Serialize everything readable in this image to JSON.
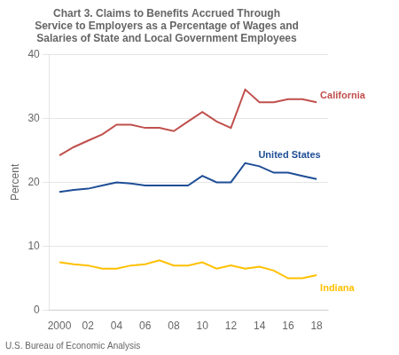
{
  "chart_data": {
    "type": "line",
    "title": [
      "Chart 3. Claims to Benefits Accrued Through",
      "Service to Employers as a Percentage of Wages and",
      "Salaries of State and Local Government Employees"
    ],
    "ylabel": "Percent",
    "source": "U.S. Bureau of Economic Analysis",
    "x": [
      2000,
      2001,
      2002,
      2003,
      2004,
      2005,
      2006,
      2007,
      2008,
      2009,
      2010,
      2011,
      2012,
      2013,
      2014,
      2015,
      2016,
      2017,
      2018
    ],
    "series": [
      {
        "name": "California",
        "color": "#c0504d",
        "values": [
          24.2,
          25.5,
          26.5,
          27.5,
          29.0,
          29.0,
          28.5,
          28.5,
          28.0,
          29.5,
          31.0,
          29.5,
          28.5,
          34.5,
          32.5,
          32.5,
          33.0,
          33.0,
          32.5
        ]
      },
      {
        "name": "United States",
        "color": "#1f4e96",
        "values": [
          18.5,
          18.8,
          19.0,
          19.5,
          20.0,
          19.8,
          19.5,
          19.5,
          19.5,
          19.5,
          21.0,
          20.0,
          20.0,
          23.0,
          22.5,
          21.5,
          21.5,
          21.0,
          20.5
        ]
      },
      {
        "name": "Indiana",
        "color": "#ffc000",
        "values": [
          7.5,
          7.2,
          7.0,
          6.5,
          6.5,
          7.0,
          7.2,
          7.8,
          7.0,
          7.0,
          7.5,
          6.5,
          7.0,
          6.5,
          6.8,
          6.2,
          5.0,
          5.0,
          5.5
        ]
      }
    ],
    "annotations": [
      {
        "text": "California",
        "x": 2018,
        "y": 32.5
      },
      {
        "text": "United States",
        "x": 2013.8,
        "y": 23.2
      },
      {
        "text": "Indiana",
        "x": 2018,
        "y": 5.5
      }
    ],
    "xlim": [
      1999.3,
      2018.8
    ],
    "xticks": [
      2000,
      {
        "value": 2002,
        "label": "02"
      },
      {
        "value": 2004,
        "label": "04"
      },
      {
        "value": 2006,
        "label": "06"
      },
      {
        "value": 2008,
        "label": "08"
      },
      {
        "value": 2010,
        "label": "10"
      },
      {
        "value": 2012,
        "label": "12"
      },
      {
        "value": 2014,
        "label": "14"
      },
      {
        "value": 2016,
        "label": "16"
      },
      {
        "value": 2018,
        "label": "18"
      }
    ],
    "ylim": [
      0,
      40
    ],
    "yticks": [
      0,
      10,
      20,
      30,
      40
    ],
    "grid": "y",
    "marker": "none"
  }
}
